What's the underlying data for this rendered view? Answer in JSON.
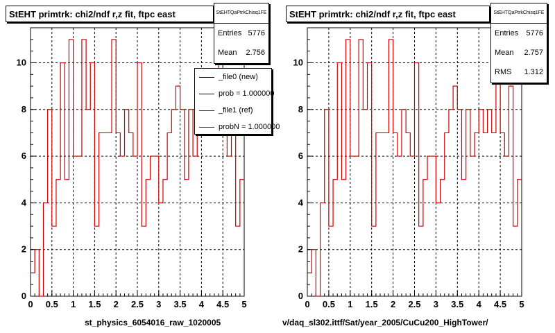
{
  "chart_data": [
    {
      "type": "histogram",
      "title": "StEHT primtrk: chi2/ndf r,z fit, ftpc east",
      "stats": {
        "name": "StEHTQaPtrkChisq1FE",
        "entries_label": "Entries",
        "entries": "5776",
        "mean_label": "Mean",
        "mean": "2.756"
      },
      "xlabel": "st_physics_6054016_raw_1020005",
      "xlim": [
        0,
        5
      ],
      "ylim": [
        0,
        11.5
      ],
      "xticks": [
        "0",
        "0.5",
        "1",
        "1.5",
        "2",
        "2.5",
        "3",
        "3.5",
        "4",
        "4.5",
        "5"
      ],
      "yticks": [
        "0",
        "2",
        "4",
        "6",
        "8",
        "10"
      ],
      "grid": true,
      "bin_width": 0.1,
      "values": [
        1,
        2,
        0,
        4,
        8,
        3,
        5,
        10,
        5,
        11,
        6,
        6,
        11,
        8,
        10,
        3,
        7,
        7,
        7,
        11,
        7,
        6,
        8,
        7,
        6,
        10,
        3,
        5,
        6,
        6,
        4,
        5,
        7,
        8,
        9,
        8,
        5,
        8,
        6,
        7,
        8,
        7,
        8,
        7,
        10,
        7,
        6,
        8,
        3,
        5
      ],
      "series": [
        {
          "name": "_file0 (new)",
          "color": "#000000"
        },
        {
          "name": "_file1 (ref)",
          "color": "#cc0000"
        }
      ],
      "legend": {
        "entries": [
          {
            "text": "_file0 (new)",
            "color": "#000000"
          },
          {
            "text": "prob = 1.000000",
            "color": "#000000"
          },
          {
            "text": "_file1 (ref)",
            "color": "#cc0000"
          },
          {
            "text": "probN = 1.000000",
            "color": "#cc0000"
          }
        ],
        "placement": "top-right"
      }
    },
    {
      "type": "histogram",
      "title": "StEHT primtrk: chi2/ndf r,z fit, ftpc east",
      "stats": {
        "name": "StEHTQaPtrkChisq1FE",
        "entries_label": "Entries",
        "entries": "5776",
        "mean_label": "Mean",
        "mean": "2.757",
        "rms_label": "RMS",
        "rms": "1.312"
      },
      "xlabel": "v/daq_sl302.ittf/Sat/year_2005/CuCu200_HighTower/",
      "xlim": [
        0,
        5
      ],
      "ylim": [
        0,
        11.5
      ],
      "xticks": [
        "0",
        "0.5",
        "1",
        "1.5",
        "2",
        "2.5",
        "3",
        "3.5",
        "4",
        "4.5",
        "5"
      ],
      "yticks": [
        "0",
        "2",
        "4",
        "6",
        "8",
        "10"
      ],
      "grid": true,
      "bin_width": 0.1,
      "values": [
        1,
        2,
        0,
        4,
        8,
        3,
        5,
        10,
        5,
        11,
        6,
        6,
        11,
        8,
        10,
        3,
        7,
        7,
        7,
        11,
        7,
        6,
        8,
        7,
        6,
        10,
        3,
        5,
        6,
        6,
        4,
        5,
        7,
        8,
        9,
        8,
        5,
        8,
        6,
        7,
        8,
        7,
        8,
        7,
        10,
        7,
        6,
        9,
        3,
        5
      ],
      "series": [
        {
          "name": "_file1 (ref)",
          "color": "#cc0000"
        }
      ]
    }
  ]
}
